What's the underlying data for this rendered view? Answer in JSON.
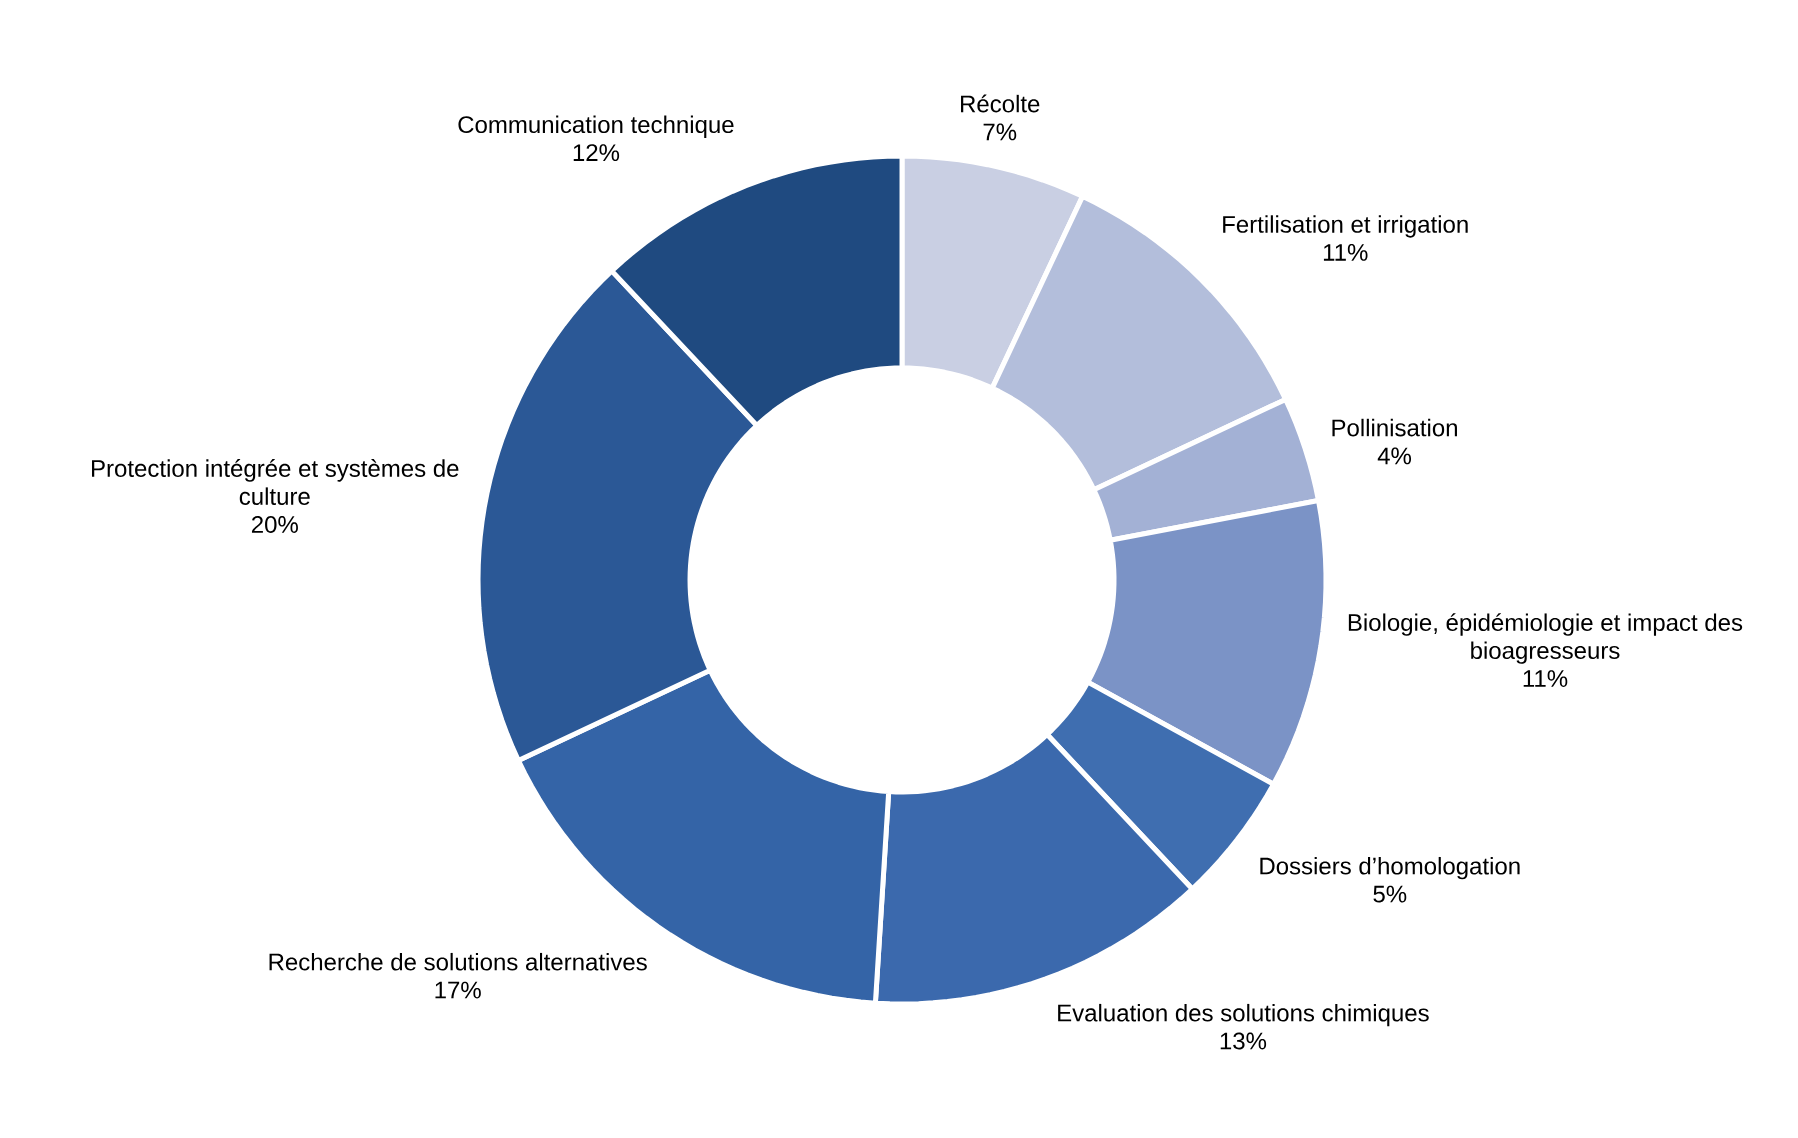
{
  "chart_data": {
    "type": "donut",
    "categories": [
      "Récolte",
      "Fertilisation et irrigation",
      "Pollinisation",
      "Biologie, épidémiologie et impact des bioagresseurs",
      "Dossiers d’homologation",
      "Evaluation des solutions chimiques",
      "Recherche de solutions alternatives",
      "Protection intégrée et systèmes de culture",
      "Communication technique"
    ],
    "values": [
      7,
      11,
      4,
      11,
      5,
      13,
      17,
      20,
      12
    ],
    "value_labels": [
      "7%",
      "11%",
      "4%",
      "11%",
      "5%",
      "13%",
      "17%",
      "20%",
      "12%"
    ],
    "colors": [
      "#c9cfe3",
      "#b3bedb",
      "#a3b1d5",
      "#7b93c6",
      "#3f6eb0",
      "#3b69ad",
      "#3464a7",
      "#2b5896",
      "#1f4a80"
    ]
  }
}
